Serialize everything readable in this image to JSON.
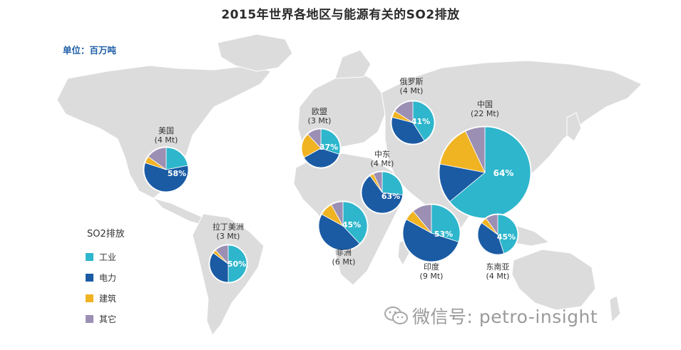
{
  "title": "2015年世界各地区与能源有关的SO2排放",
  "unit_label": "单位：百万吨",
  "watermark": "微信号: petro-insight",
  "chart_data": {
    "type": "pie",
    "title": "2015年世界各地区与能源有关的SO2排放",
    "unit": "百万吨",
    "legend": {
      "title": "SO2排放",
      "placement": "bottom-left",
      "categories": [
        {
          "key": "industry",
          "label": "工业",
          "color": "#2db6cc"
        },
        {
          "key": "power",
          "label": "电力",
          "color": "#1a5ba4"
        },
        {
          "key": "buildings",
          "label": "建筑",
          "color": "#f0b321"
        },
        {
          "key": "other",
          "label": "其它",
          "color": "#9c8fb4"
        }
      ]
    },
    "regions": [
      {
        "id": "usa",
        "name": "美国",
        "total_label": "(4 Mt)",
        "total": 4,
        "pct_label": "58%",
        "shares": {
          "industry": 0.22,
          "power": 0.58,
          "buildings": 0.05,
          "other": 0.15
        }
      },
      {
        "id": "europe",
        "name": "欧盟",
        "total_label": "(3 Mt)",
        "total": 3,
        "pct_label": "37%",
        "shares": {
          "industry": 0.3,
          "power": 0.37,
          "buildings": 0.21,
          "other": 0.12
        }
      },
      {
        "id": "russia",
        "name": "俄罗斯",
        "total_label": "(4 Mt)",
        "total": 4,
        "pct_label": "41%",
        "shares": {
          "industry": 0.41,
          "power": 0.38,
          "buildings": 0.05,
          "other": 0.16
        }
      },
      {
        "id": "china",
        "name": "中国",
        "total_label": "(22 Mt)",
        "total": 22,
        "pct_label": "64%",
        "shares": {
          "industry": 0.64,
          "power": 0.14,
          "buildings": 0.15,
          "other": 0.07
        }
      },
      {
        "id": "mideast",
        "name": "中东",
        "total_label": "(4 Mt)",
        "total": 4,
        "pct_label": "63%",
        "shares": {
          "industry": 0.27,
          "power": 0.63,
          "buildings": 0.03,
          "other": 0.07
        }
      },
      {
        "id": "africa",
        "name": "非洲",
        "total_label": "(6 Mt)",
        "total": 6,
        "pct_label": "45%",
        "shares": {
          "industry": 0.38,
          "power": 0.45,
          "buildings": 0.09,
          "other": 0.08
        }
      },
      {
        "id": "latam",
        "name": "拉丁美洲",
        "total_label": "(3 Mt)",
        "total": 3,
        "pct_label": "50%",
        "shares": {
          "industry": 0.5,
          "power": 0.35,
          "buildings": 0.03,
          "other": 0.12
        }
      },
      {
        "id": "india",
        "name": "印度",
        "total_label": "(9 Mt)",
        "total": 9,
        "pct_label": "53%",
        "shares": {
          "industry": 0.3,
          "power": 0.53,
          "buildings": 0.06,
          "other": 0.11
        }
      },
      {
        "id": "sea",
        "name": "东南亚",
        "total_label": "(4 Mt)",
        "total": 4,
        "pct_label": "45%",
        "shares": {
          "industry": 0.45,
          "power": 0.4,
          "buildings": 0.05,
          "other": 0.1
        }
      }
    ]
  }
}
